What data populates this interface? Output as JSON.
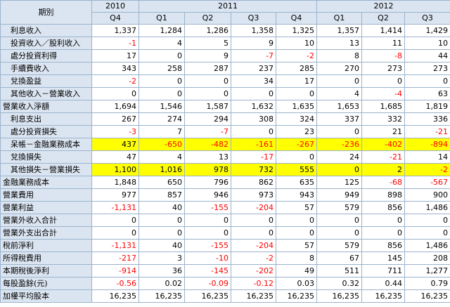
{
  "header": {
    "title": "期別",
    "years": [
      "2010",
      "2011",
      "2012"
    ],
    "quarters": [
      "Q4",
      "Q1",
      "Q2",
      "Q3",
      "Q4",
      "Q1",
      "Q2",
      "Q3"
    ]
  },
  "table": {
    "rows": [
      {
        "label": "利息收入",
        "values": [
          "1,337",
          "1,284",
          "1,286",
          "1,358",
          "1,325",
          "1,357",
          "1,414",
          "1,429"
        ]
      },
      {
        "label": "投資收入／股利收入",
        "values": [
          "-1",
          "4",
          "5",
          "9",
          "10",
          "13",
          "11",
          "10"
        ]
      },
      {
        "label": "處分投資利得",
        "values": [
          "17",
          "0",
          "9",
          "-7",
          "-2",
          "8",
          "-8",
          "44"
        ]
      },
      {
        "label": "手續費收入",
        "values": [
          "343",
          "258",
          "287",
          "237",
          "285",
          "270",
          "273",
          "273"
        ]
      },
      {
        "label": "兌換盈益",
        "values": [
          "-2",
          "0",
          "0",
          "34",
          "17",
          "0",
          "0",
          "0"
        ]
      },
      {
        "label": "其他收入－營業收入",
        "values": [
          "0",
          "0",
          "0",
          "0",
          "0",
          "4",
          "-4",
          "63"
        ]
      },
      {
        "label": "營業收入淨額",
        "values": [
          "1,694",
          "1,546",
          "1,587",
          "1,632",
          "1,635",
          "1,653",
          "1,685",
          "1,819"
        ]
      },
      {
        "label": "利息支出",
        "values": [
          "267",
          "274",
          "294",
          "308",
          "324",
          "337",
          "332",
          "336"
        ]
      },
      {
        "label": "處分投資損失",
        "values": [
          "-3",
          "7",
          "-7",
          "0",
          "23",
          "0",
          "21",
          "-21"
        ]
      },
      {
        "label": "呆帳－金融業務成本",
        "values": [
          "437",
          "-650",
          "-482",
          "-161",
          "-267",
          "-236",
          "-402",
          "-894"
        ]
      },
      {
        "label": "兌換損失",
        "values": [
          "47",
          "4",
          "13",
          "-17",
          "0",
          "24",
          "-21",
          "14"
        ]
      },
      {
        "label": "其他損失－營業損失",
        "values": [
          "1,100",
          "1,016",
          "978",
          "732",
          "555",
          "0",
          "2",
          "-2"
        ]
      },
      {
        "label": "金融業務成本",
        "values": [
          "1,848",
          "650",
          "796",
          "862",
          "635",
          "125",
          "-68",
          "-567"
        ]
      },
      {
        "label": "營業費用",
        "values": [
          "977",
          "857",
          "946",
          "973",
          "943",
          "949",
          "898",
          "900"
        ]
      },
      {
        "label": "營業利益",
        "values": [
          "-1,131",
          "40",
          "-155",
          "-204",
          "57",
          "579",
          "856",
          "1,486"
        ]
      },
      {
        "label": "營業外收入合計",
        "values": [
          "0",
          "0",
          "0",
          "0",
          "0",
          "0",
          "0",
          "0"
        ]
      },
      {
        "label": "營業外支出合計",
        "values": [
          "0",
          "0",
          "0",
          "0",
          "0",
          "0",
          "0",
          "0"
        ]
      },
      {
        "label": "稅前淨利",
        "values": [
          "-1,131",
          "40",
          "-155",
          "-204",
          "57",
          "579",
          "856",
          "1,486"
        ]
      },
      {
        "label": "所得稅費用",
        "values": [
          "-217",
          "3",
          "-10",
          "-2",
          "8",
          "67",
          "145",
          "208"
        ]
      },
      {
        "label": "本期稅後淨利",
        "values": [
          "-914",
          "36",
          "-145",
          "-202",
          "49",
          "511",
          "711",
          "1,277"
        ]
      },
      {
        "label": "每股盈餘(元)",
        "values": [
          "-0.56",
          "0.02",
          "-0.09",
          "-0.12",
          "0.03",
          "0.32",
          "0.44",
          "0.79"
        ]
      },
      {
        "label": "加權平均股本",
        "values": [
          "16,235",
          "16,235",
          "16,235",
          "16,235",
          "16,235",
          "16,235",
          "16,235",
          "16,235"
        ]
      }
    ]
  }
}
